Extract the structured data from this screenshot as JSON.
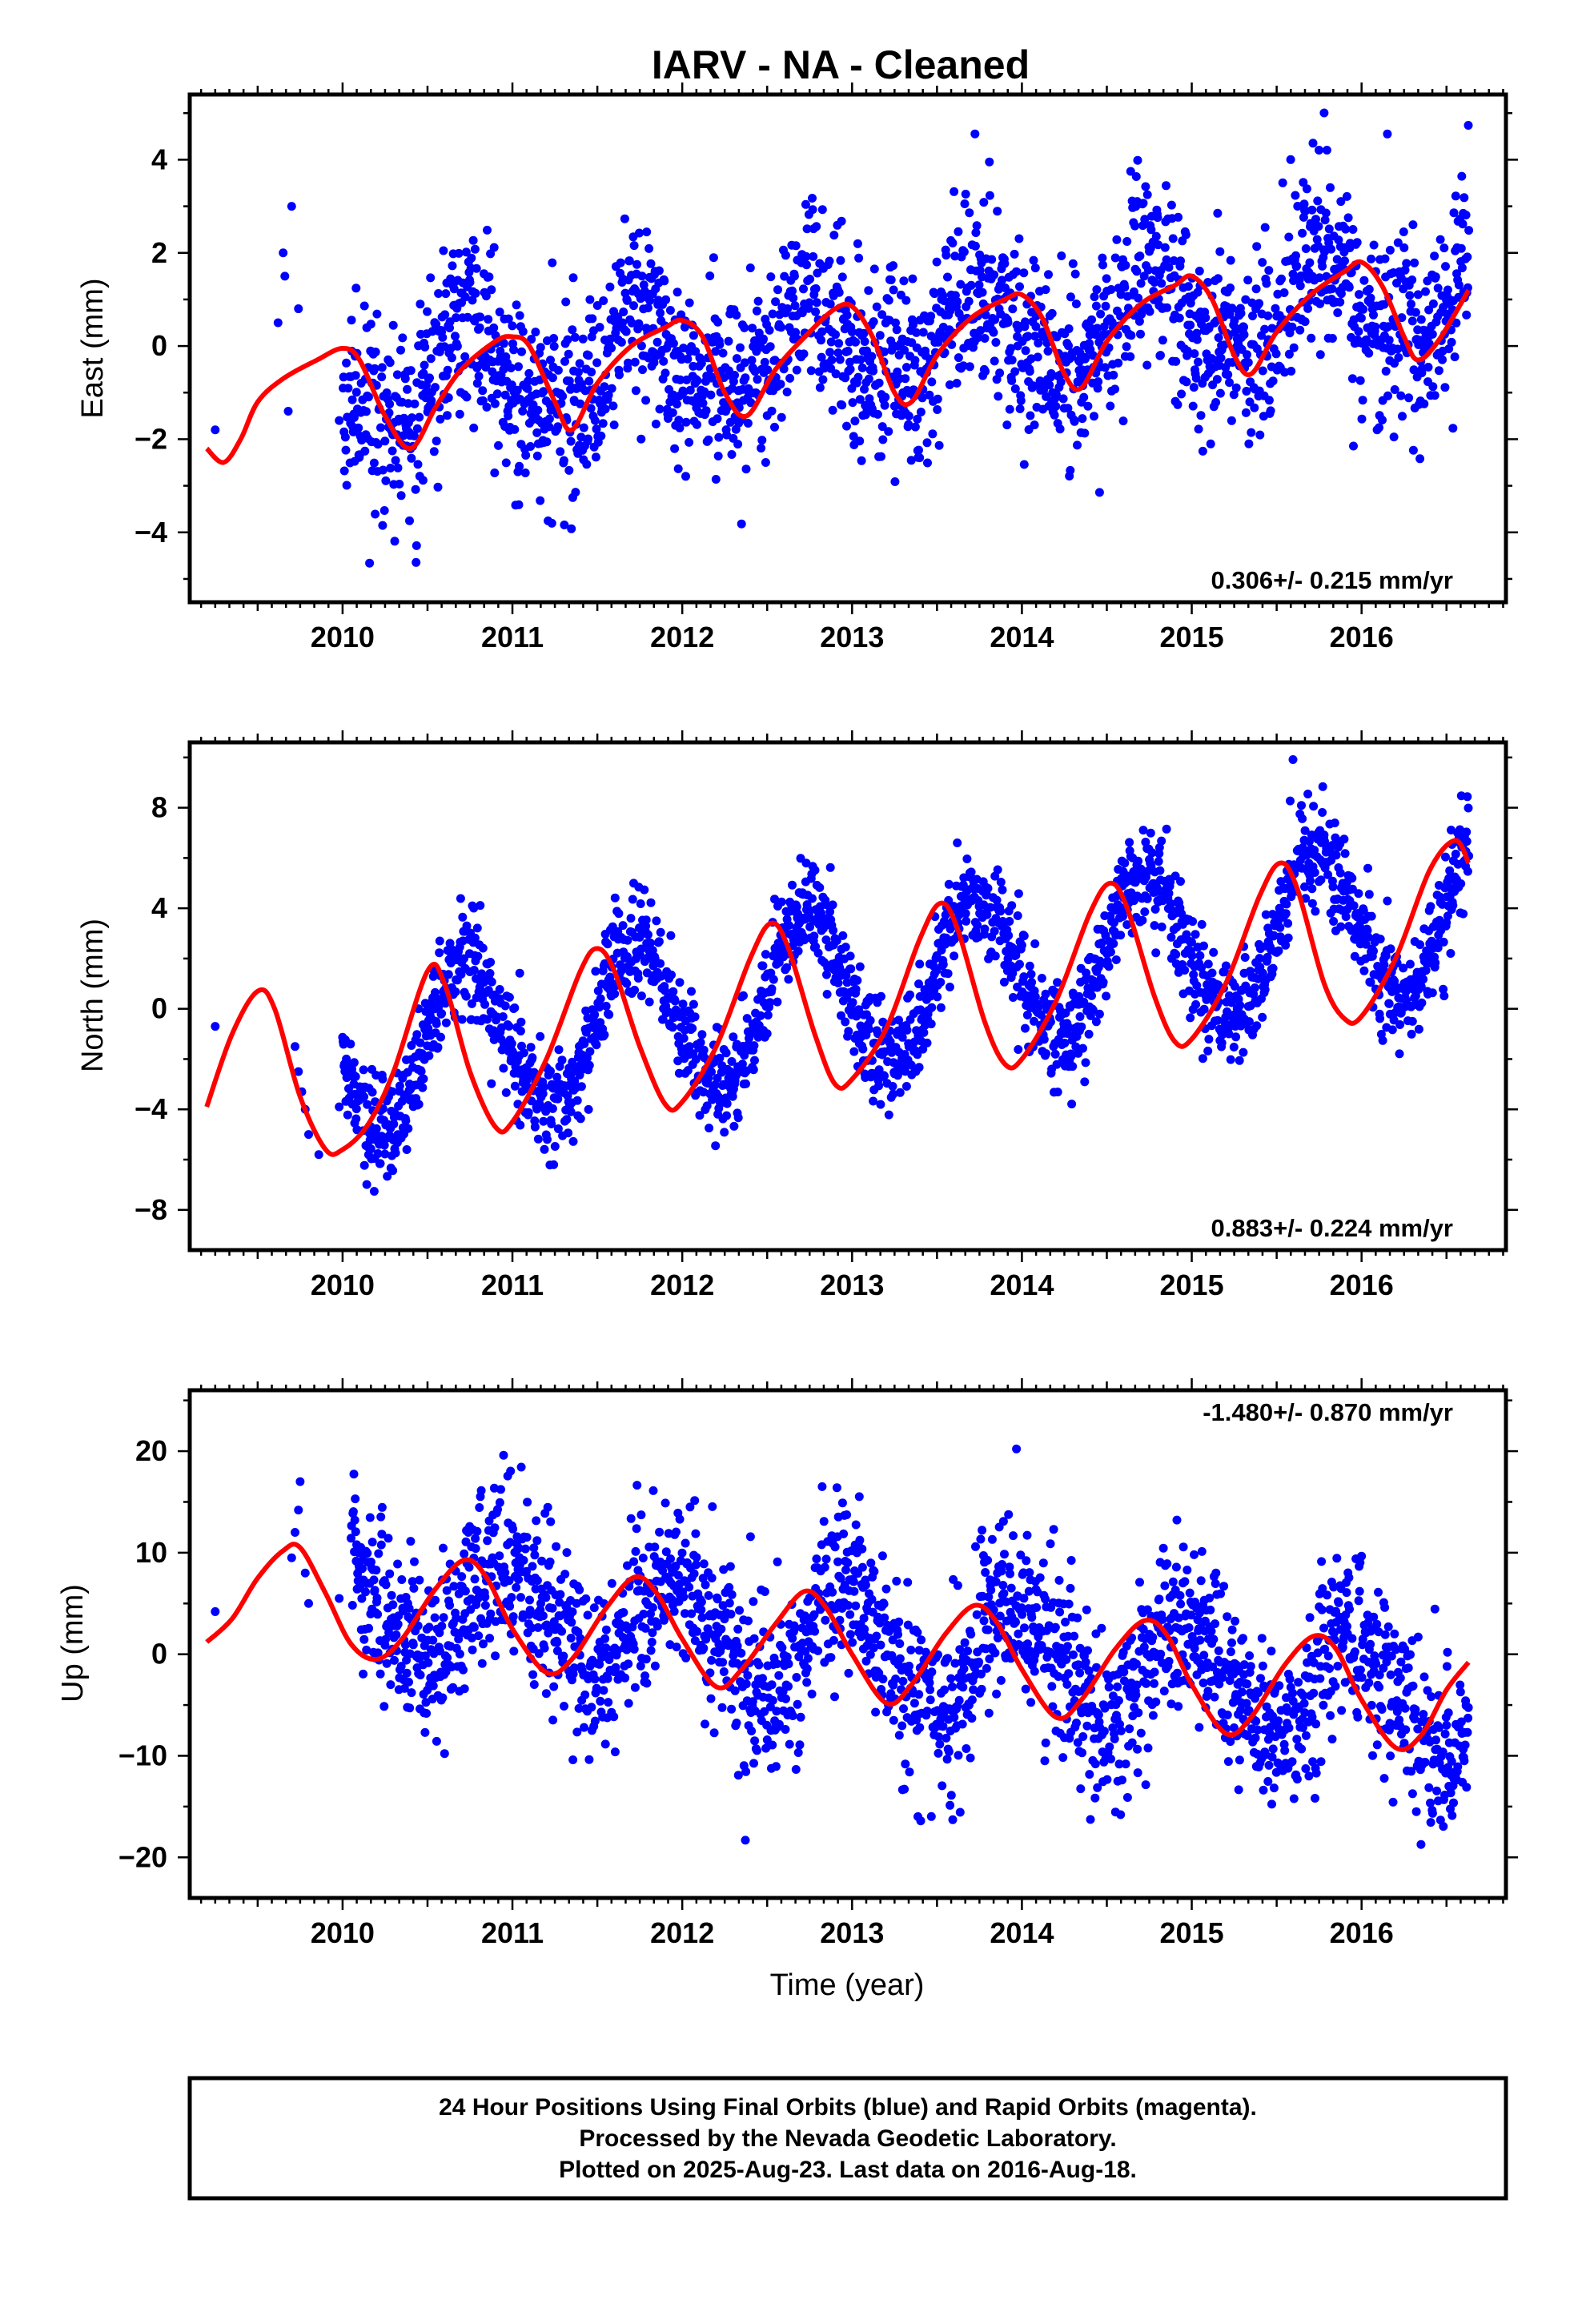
{
  "title": "IARV  - NA - Cleaned",
  "colors": {
    "points": "#0000ff",
    "fit": "#ff0000",
    "frame": "#000000"
  },
  "footer": {
    "line1": "24 Hour Positions Using Final Orbits (blue) and Rapid Orbits (magenta).",
    "line2": "Processed by the Nevada Geodetic Laboratory.",
    "line3": "Plotted on 2025-Aug-23. Last data on 2016-Aug-18."
  },
  "chart_data": [
    {
      "type": "scatter",
      "component": "east",
      "ylabel": "East (mm)",
      "xlabel": "",
      "rate_text": "0.306+/- 0.215 mm/yr",
      "xlim": [
        2009.1,
        2016.85
      ],
      "ylim": [
        -5.5,
        5.4
      ],
      "x_ticks": [
        2010,
        2011,
        2012,
        2013,
        2014,
        2015,
        2016
      ],
      "y_ticks": [
        -4,
        -2,
        0,
        2,
        4
      ],
      "grid": false,
      "data_start": 2010.0,
      "data_end": 2016.63,
      "trend": {
        "rate": 0.306,
        "intercept": -0.9,
        "t0": 2010.0
      },
      "seasonal": {
        "a1": 0.95,
        "p1": 0.5,
        "a2": 0.35,
        "p2": 0.1
      },
      "noise_sd": 1.0,
      "early_points": [
        [
          2009.25,
          -1.8
        ],
        [
          2009.62,
          0.5
        ],
        [
          2009.65,
          2.0
        ],
        [
          2009.66,
          1.5
        ],
        [
          2009.68,
          -1.4
        ],
        [
          2009.7,
          3.0
        ],
        [
          2009.74,
          0.8
        ],
        [
          2009.98,
          -1.6
        ]
      ],
      "fit_curve": [
        [
          2009.2,
          -2.2
        ],
        [
          2009.3,
          -2.5
        ],
        [
          2009.4,
          -2.0
        ],
        [
          2009.5,
          -1.2
        ],
        [
          2009.65,
          -0.7
        ],
        [
          2009.85,
          -0.3
        ],
        [
          2010.0,
          -0.05
        ],
        [
          2010.1,
          -0.3
        ],
        [
          2010.25,
          -1.5
        ],
        [
          2010.4,
          -2.2
        ],
        [
          2010.55,
          -1.3
        ],
        [
          2010.7,
          -0.5
        ],
        [
          2010.9,
          0.1
        ],
        [
          2011.0,
          0.2
        ],
        [
          2011.1,
          0.0
        ],
        [
          2011.25,
          -1.2
        ],
        [
          2011.35,
          -1.8
        ],
        [
          2011.5,
          -0.8
        ],
        [
          2011.7,
          0.0
        ],
        [
          2011.9,
          0.4
        ],
        [
          2012.0,
          0.55
        ],
        [
          2012.12,
          0.2
        ],
        [
          2012.25,
          -1.0
        ],
        [
          2012.38,
          -1.5
        ],
        [
          2012.55,
          -0.5
        ],
        [
          2012.75,
          0.3
        ],
        [
          2012.9,
          0.8
        ],
        [
          2013.0,
          0.85
        ],
        [
          2013.12,
          0.2
        ],
        [
          2013.25,
          -1.0
        ],
        [
          2013.35,
          -1.2
        ],
        [
          2013.5,
          -0.2
        ],
        [
          2013.7,
          0.6
        ],
        [
          2013.9,
          1.0
        ],
        [
          2014.0,
          1.1
        ],
        [
          2014.12,
          0.6
        ],
        [
          2014.25,
          -0.6
        ],
        [
          2014.35,
          -0.9
        ],
        [
          2014.5,
          0.1
        ],
        [
          2014.7,
          0.9
        ],
        [
          2014.9,
          1.3
        ],
        [
          2015.0,
          1.5
        ],
        [
          2015.12,
          1.0
        ],
        [
          2015.25,
          -0.2
        ],
        [
          2015.35,
          -0.6
        ],
        [
          2015.5,
          0.3
        ],
        [
          2015.7,
          1.1
        ],
        [
          2015.9,
          1.6
        ],
        [
          2016.0,
          1.8
        ],
        [
          2016.12,
          1.3
        ],
        [
          2016.25,
          0.2
        ],
        [
          2016.33,
          -0.3
        ],
        [
          2016.45,
          0.1
        ],
        [
          2016.63,
          1.2
        ]
      ]
    },
    {
      "type": "scatter",
      "component": "north",
      "ylabel": "North (mm)",
      "xlabel": "",
      "rate_text": "0.883+/- 0.224 mm/yr",
      "xlim": [
        2009.1,
        2016.85
      ],
      "ylim": [
        -9.6,
        10.6
      ],
      "x_ticks": [
        2010,
        2011,
        2012,
        2013,
        2014,
        2015,
        2016
      ],
      "y_ticks": [
        -8,
        -4,
        0,
        4,
        8
      ],
      "grid": false,
      "data_start": 2010.0,
      "data_end": 2016.63,
      "trend": {
        "rate": 0.883,
        "intercept": -1.9,
        "t0": 2010.0
      },
      "seasonal": {
        "a1": 3.1,
        "p1": 0.48,
        "a2": 0.2,
        "p2": 0.0
      },
      "noise_sd": 1.0,
      "early_points": [
        [
          2009.25,
          -0.7
        ],
        [
          2009.72,
          -1.5
        ],
        [
          2009.74,
          -2.5
        ],
        [
          2009.76,
          -3.3
        ],
        [
          2009.78,
          -4.0
        ],
        [
          2009.8,
          -5.0
        ],
        [
          2009.86,
          -5.8
        ],
        [
          2009.98,
          -3.9
        ]
      ],
      "fit_curve": [
        [
          2009.2,
          -3.9
        ],
        [
          2009.35,
          -1.0
        ],
        [
          2009.5,
          0.7
        ],
        [
          2009.6,
          0.0
        ],
        [
          2009.75,
          -3.5
        ],
        [
          2009.9,
          -5.6
        ],
        [
          2010.0,
          -5.6
        ],
        [
          2010.15,
          -4.6
        ],
        [
          2010.3,
          -2.5
        ],
        [
          2010.5,
          1.5
        ],
        [
          2010.6,
          1.0
        ],
        [
          2010.75,
          -2.5
        ],
        [
          2010.9,
          -4.7
        ],
        [
          2011.0,
          -4.5
        ],
        [
          2011.2,
          -2.0
        ],
        [
          2011.4,
          1.5
        ],
        [
          2011.5,
          2.4
        ],
        [
          2011.6,
          1.5
        ],
        [
          2011.75,
          -1.5
        ],
        [
          2011.9,
          -3.8
        ],
        [
          2012.0,
          -3.7
        ],
        [
          2012.2,
          -1.5
        ],
        [
          2012.4,
          2.0
        ],
        [
          2012.52,
          3.4
        ],
        [
          2012.62,
          2.5
        ],
        [
          2012.78,
          -1.0
        ],
        [
          2012.9,
          -3.0
        ],
        [
          2013.0,
          -2.8
        ],
        [
          2013.2,
          -0.8
        ],
        [
          2013.4,
          2.8
        ],
        [
          2013.52,
          4.2
        ],
        [
          2013.62,
          3.2
        ],
        [
          2013.78,
          -0.5
        ],
        [
          2013.9,
          -2.2
        ],
        [
          2014.0,
          -2.0
        ],
        [
          2014.2,
          0.3
        ],
        [
          2014.4,
          3.8
        ],
        [
          2014.52,
          5.0
        ],
        [
          2014.62,
          4.0
        ],
        [
          2014.78,
          0.5
        ],
        [
          2014.9,
          -1.3
        ],
        [
          2015.0,
          -1.2
        ],
        [
          2015.2,
          1.0
        ],
        [
          2015.4,
          4.5
        ],
        [
          2015.52,
          5.8
        ],
        [
          2015.62,
          4.8
        ],
        [
          2015.78,
          1.0
        ],
        [
          2015.9,
          -0.4
        ],
        [
          2016.0,
          -0.3
        ],
        [
          2016.2,
          2.0
        ],
        [
          2016.4,
          5.5
        ],
        [
          2016.55,
          6.7
        ],
        [
          2016.63,
          5.8
        ]
      ]
    },
    {
      "type": "scatter",
      "component": "up",
      "ylabel": "Up (mm)",
      "xlabel": "Time (year)",
      "rate_text": "-1.480+/- 0.870 mm/yr",
      "xlim": [
        2009.1,
        2016.85
      ],
      "ylim": [
        -24,
        26
      ],
      "x_ticks": [
        2010,
        2011,
        2012,
        2013,
        2014,
        2015,
        2016
      ],
      "y_ticks": [
        -20,
        -10,
        0,
        10,
        20
      ],
      "grid": false,
      "data_start": 2010.05,
      "data_end": 2016.63,
      "trend": {
        "rate": -1.48,
        "intercept": 5.5,
        "t0": 2010.0
      },
      "seasonal": {
        "a1": 5.5,
        "p1": 0.72,
        "a2": 0.8,
        "p2": 0.2
      },
      "noise_sd": 4.2,
      "early_points": [
        [
          2009.25,
          4.2
        ],
        [
          2009.7,
          9.5
        ],
        [
          2009.72,
          12.0
        ],
        [
          2009.74,
          14.2
        ],
        [
          2009.75,
          17.0
        ],
        [
          2009.78,
          8.0
        ],
        [
          2009.8,
          5.0
        ],
        [
          2009.98,
          5.5
        ]
      ],
      "fit_curve": [
        [
          2009.2,
          1.2
        ],
        [
          2009.35,
          3.5
        ],
        [
          2009.5,
          7.5
        ],
        [
          2009.65,
          10.2
        ],
        [
          2009.75,
          10.5
        ],
        [
          2009.9,
          6.0
        ],
        [
          2010.05,
          1.0
        ],
        [
          2010.2,
          -0.5
        ],
        [
          2010.35,
          1.5
        ],
        [
          2010.55,
          6.5
        ],
        [
          2010.72,
          9.3
        ],
        [
          2010.85,
          7.5
        ],
        [
          2011.0,
          2.5
        ],
        [
          2011.2,
          -1.8
        ],
        [
          2011.35,
          -0.5
        ],
        [
          2011.55,
          4.5
        ],
        [
          2011.72,
          7.6
        ],
        [
          2011.85,
          6.0
        ],
        [
          2012.0,
          1.5
        ],
        [
          2012.2,
          -3.2
        ],
        [
          2012.35,
          -1.5
        ],
        [
          2012.55,
          3.0
        ],
        [
          2012.72,
          6.2
        ],
        [
          2012.85,
          4.5
        ],
        [
          2013.0,
          0.0
        ],
        [
          2013.2,
          -4.8
        ],
        [
          2013.35,
          -3.0
        ],
        [
          2013.55,
          2.0
        ],
        [
          2013.72,
          4.8
        ],
        [
          2013.85,
          3.2
        ],
        [
          2014.0,
          -1.5
        ],
        [
          2014.2,
          -6.2
        ],
        [
          2014.35,
          -4.5
        ],
        [
          2014.55,
          0.5
        ],
        [
          2014.72,
          3.3
        ],
        [
          2014.85,
          2.0
        ],
        [
          2015.0,
          -3.0
        ],
        [
          2015.2,
          -7.8
        ],
        [
          2015.35,
          -6.2
        ],
        [
          2015.55,
          -1.0
        ],
        [
          2015.72,
          1.8
        ],
        [
          2015.85,
          0.5
        ],
        [
          2016.0,
          -4.5
        ],
        [
          2016.2,
          -9.2
        ],
        [
          2016.35,
          -8.0
        ],
        [
          2016.5,
          -3.5
        ],
        [
          2016.63,
          -0.8
        ]
      ]
    }
  ]
}
